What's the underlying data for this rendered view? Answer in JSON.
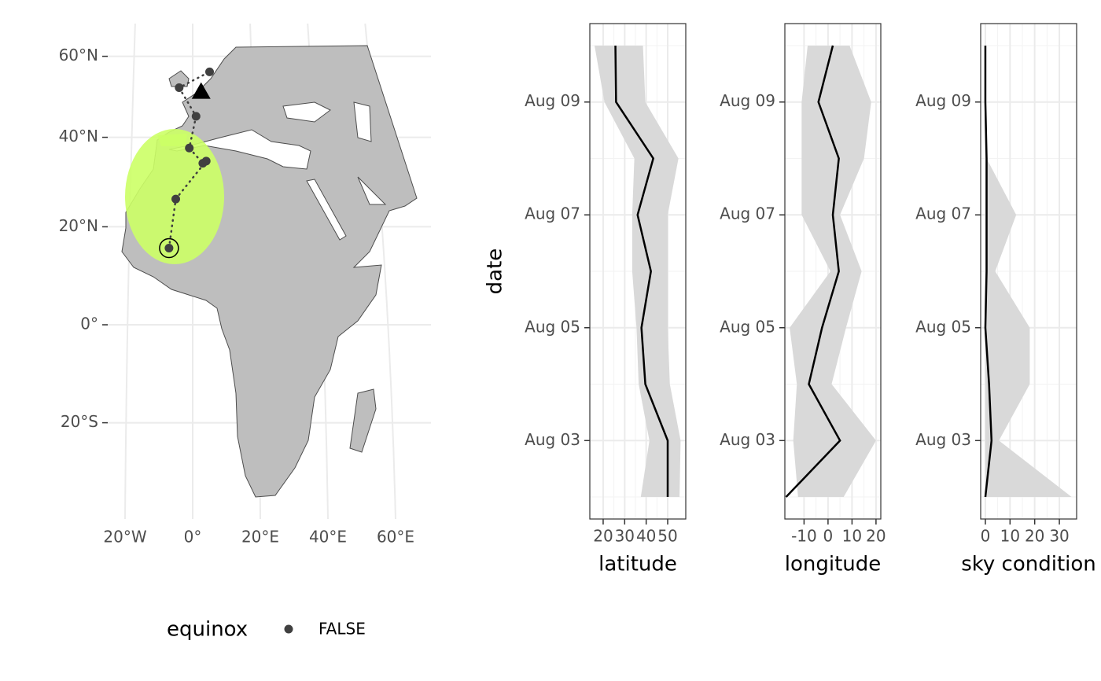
{
  "chart_data": [
    {
      "type": "map",
      "xticks": [
        {
          "value": -20,
          "label": "20°W"
        },
        {
          "value": 0,
          "label": "0°"
        },
        {
          "value": 20,
          "label": "20°E"
        },
        {
          "value": 40,
          "label": "40°E"
        },
        {
          "value": 60,
          "label": "60°E"
        }
      ],
      "yticks": [
        {
          "value": -20,
          "label": "20°S"
        },
        {
          "value": 0,
          "label": "0°"
        },
        {
          "value": 20,
          "label": "20°N"
        },
        {
          "value": 40,
          "label": "40°N"
        },
        {
          "value": 60,
          "label": "60°N"
        }
      ],
      "legend_title": "equinox",
      "series": [
        {
          "name": "FALSE",
          "color": "#404040",
          "x": [
            -7,
            -5,
            4,
            3,
            -1,
            1,
            -4,
            5
          ],
          "y": [
            15.5,
            26,
            34.5,
            34,
            37.5,
            45,
            52,
            56
          ]
        }
      ],
      "circled_point": 0,
      "triangle": {
        "x": 2.5,
        "y": 51
      }
    },
    {
      "type": "line",
      "xlabel": "latitude",
      "ylabel": "date",
      "y": [
        "Aug 02",
        "Aug 03",
        "Aug 04",
        "Aug 05",
        "Aug 06",
        "Aug 07",
        "Aug 08",
        "Aug 09",
        "Aug 10"
      ],
      "yticks": [
        "Aug 03",
        "Aug 05",
        "Aug 07",
        "Aug 09"
      ],
      "xlim": [
        13.8,
        58.4
      ],
      "xticks": [
        20,
        30,
        40,
        50
      ],
      "series": [
        {
          "color": "#000000",
          "band_color": "#d9d9d9",
          "values": [
            50,
            50,
            39.6,
            37.8,
            42.2,
            36,
            43.3,
            26,
            25.7
          ],
          "lower": [
            37.5,
            41.5,
            36.5,
            35.5,
            33.5,
            33.5,
            34.5,
            20.6,
            16
          ],
          "upper": [
            55.5,
            56,
            51,
            50,
            50,
            50,
            55,
            39.6,
            38.5
          ]
        }
      ]
    },
    {
      "type": "line",
      "xlabel": "longitude",
      "y": [
        "Aug 02",
        "Aug 03",
        "Aug 04",
        "Aug 05",
        "Aug 06",
        "Aug 07",
        "Aug 08",
        "Aug 09",
        "Aug 10"
      ],
      "yticks": [
        "Aug 03",
        "Aug 05",
        "Aug 07",
        "Aug 09"
      ],
      "xlim": [
        -18,
        22
      ],
      "xticks": [
        -10,
        0,
        10,
        20
      ],
      "series": [
        {
          "color": "#000000",
          "band_color": "#d9d9d9",
          "values": [
            -17.5,
            5,
            -8,
            -2.5,
            4.5,
            2,
            4.5,
            -4,
            2
          ],
          "lower": [
            -12.5,
            -14.5,
            -13,
            -16,
            1,
            -11,
            -11,
            -11,
            -8.5
          ],
          "upper": [
            6.5,
            20,
            1.5,
            7.5,
            14,
            5,
            15,
            18,
            9
          ]
        }
      ]
    },
    {
      "type": "line",
      "xlabel": "sky condition",
      "y": [
        "Aug 02",
        "Aug 03",
        "Aug 04",
        "Aug 05",
        "Aug 06",
        "Aug 07",
        "Aug 08",
        "Aug 09",
        "Aug 10"
      ],
      "yticks": [
        "Aug 03",
        "Aug 05",
        "Aug 07",
        "Aug 09"
      ],
      "xlim": [
        -1.9,
        37
      ],
      "xticks": [
        0,
        10,
        20,
        30
      ],
      "series": [
        {
          "color": "#000000",
          "band_color": "#d9d9d9",
          "values": [
            0,
            2.5,
            1.5,
            0,
            0.5,
            0.5,
            0.5,
            0,
            0
          ],
          "lower": [
            0,
            0,
            0,
            0,
            0,
            0,
            0,
            0,
            0
          ],
          "upper": [
            35,
            5.5,
            18,
            18,
            4,
            12.5,
            0.5,
            0,
            0
          ]
        }
      ]
    }
  ]
}
